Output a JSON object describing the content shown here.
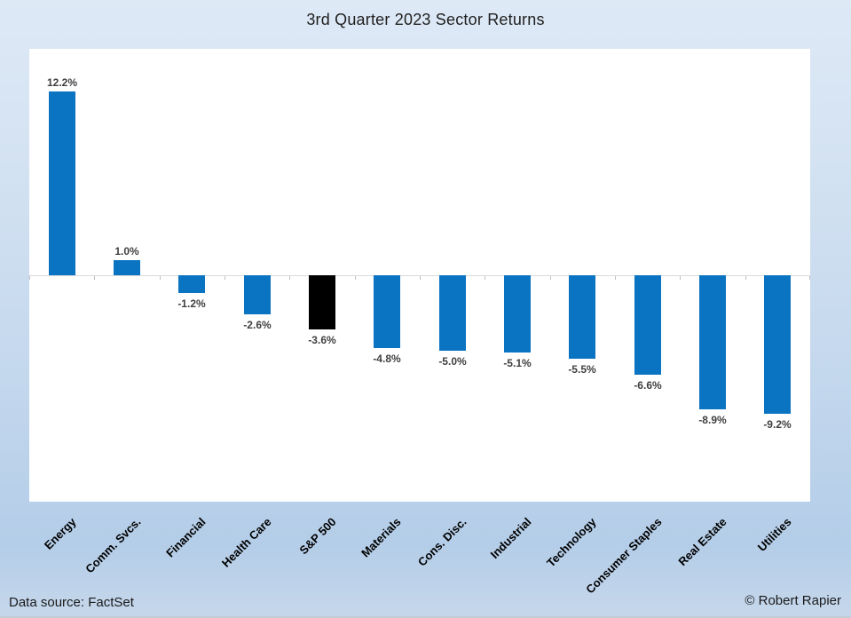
{
  "title": "3rd Quarter 2023 Sector Returns",
  "footer": {
    "data_source": "Data source: FactSet",
    "copyright": "© Robert Rapier"
  },
  "colors": {
    "bar": "#0a73c2",
    "highlight_bar": "#000000",
    "axis_line": "#d9d9d9",
    "tick": "#bfbfbf",
    "value_label": "#404040",
    "category_label": "#000000",
    "plot_background": "#ffffff",
    "background_top": "#dee9f6",
    "background_bottom": "#b4cde8"
  },
  "chart_data": {
    "type": "bar",
    "title": "3rd Quarter 2023 Sector Returns",
    "xlabel": "",
    "ylabel": "",
    "categories": [
      "Energy",
      "Comm. Svcs.",
      "Financial",
      "Health Care",
      "S&P 500",
      "Materials",
      "Cons. Disc.",
      "Industrial",
      "Technology",
      "Consumer Staples",
      "Real Estate",
      "Utilities"
    ],
    "values": [
      12.2,
      1.0,
      -1.2,
      -2.6,
      -3.6,
      -4.8,
      -5.0,
      -5.1,
      -5.5,
      -6.6,
      -8.9,
      -9.2
    ],
    "value_labels": [
      "12.2%",
      "1.0%",
      "-1.2%",
      "-2.6%",
      "-3.6%",
      "-4.8%",
      "-5.0%",
      "-5.1%",
      "-5.5%",
      "-6.6%",
      "-8.9%",
      "-9.2%"
    ],
    "highlighted_category": "S&P 500",
    "ylim": [
      -15,
      15
    ],
    "grid": false,
    "legend": false,
    "data_label_position": "outside-end",
    "category_label_rotation_deg": 45
  }
}
